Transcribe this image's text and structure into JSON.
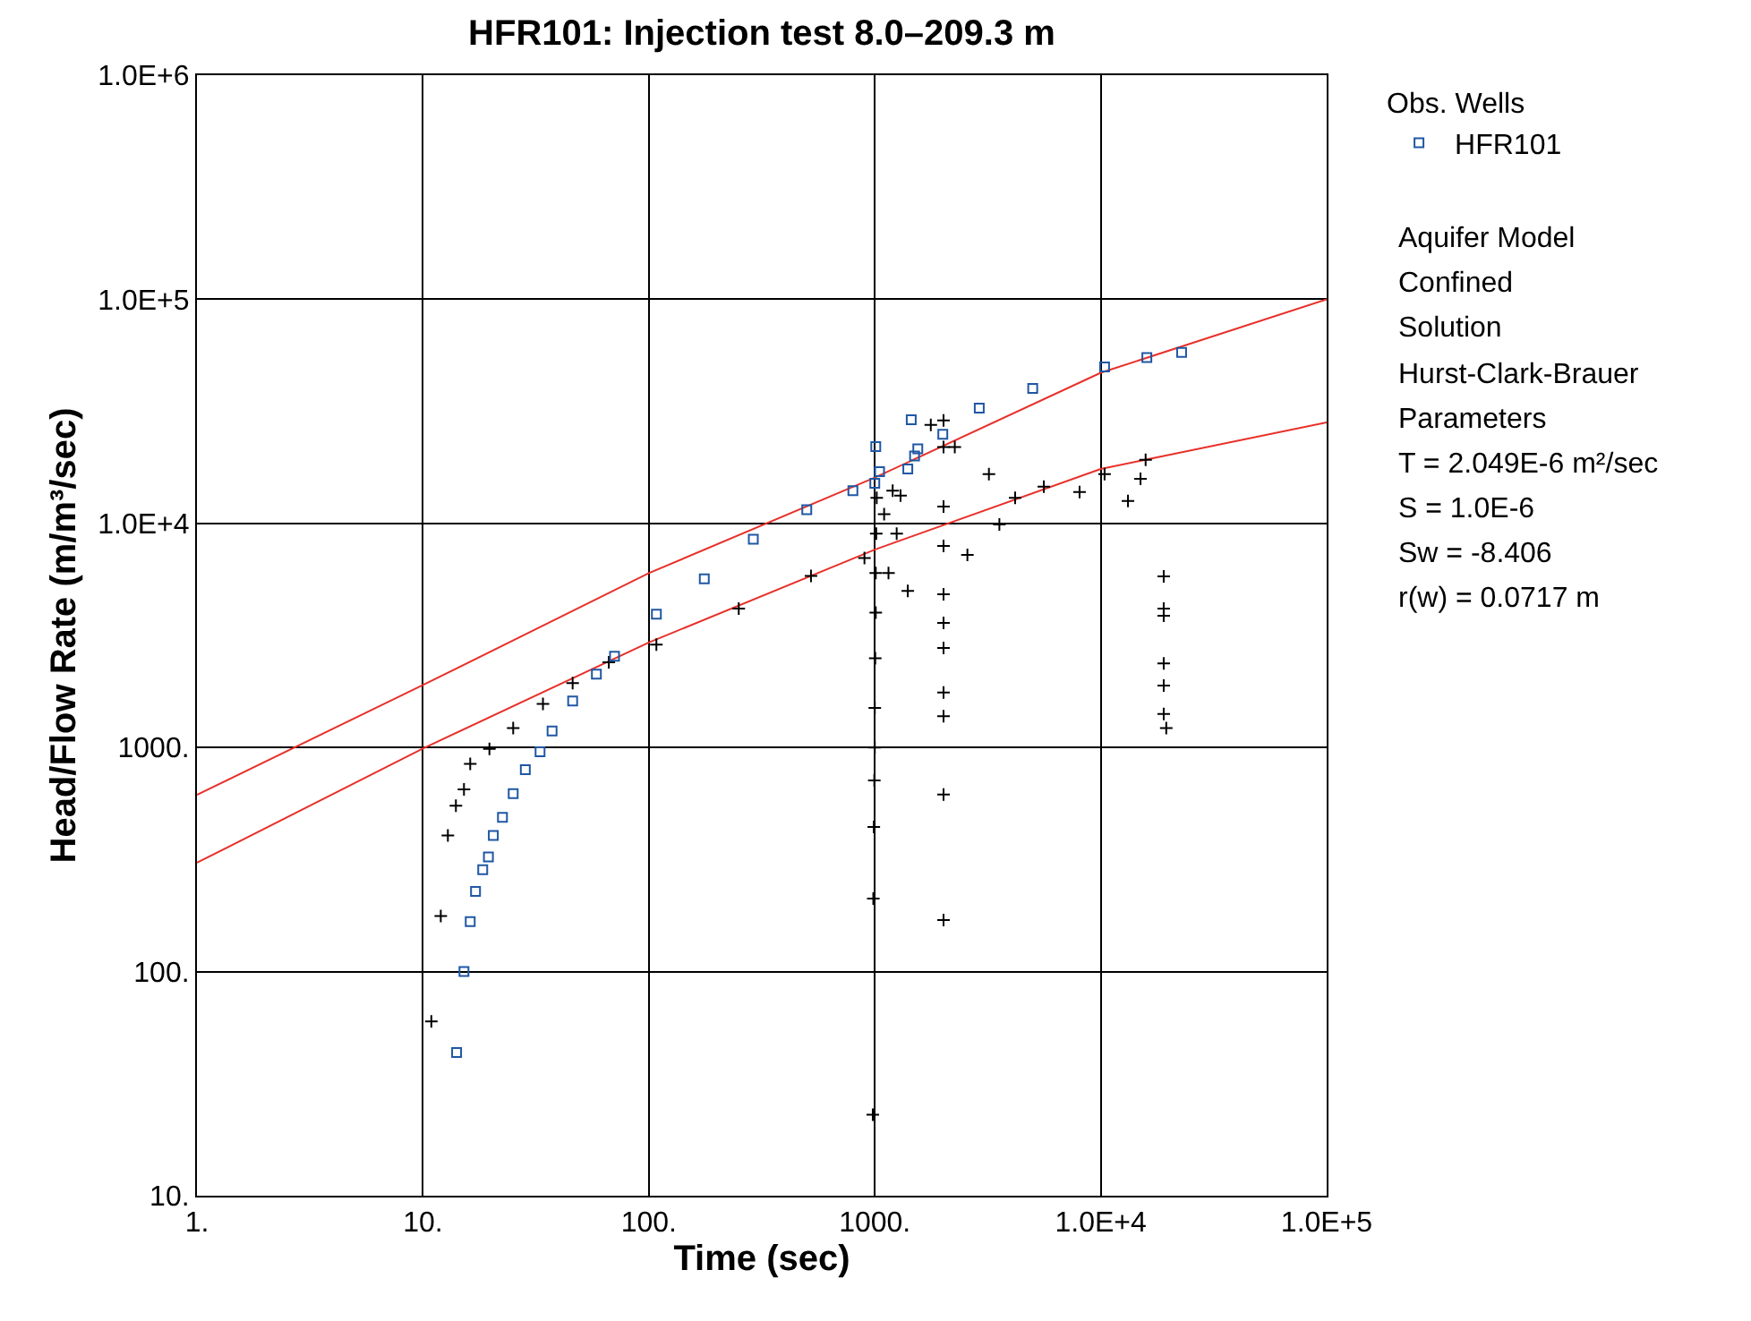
{
  "chart_data": {
    "type": "scatter",
    "title": "HFR101: Injection test 8.0–209.3 m",
    "xlabel": "Time (sec)",
    "ylabel": "Head/Flow Rate (m/m³/sec)",
    "legend_title": "Obs. Wells",
    "legend": "top right",
    "log": "xy",
    "grid": true,
    "xlim": [
      1,
      100000
    ],
    "xticks": [
      {
        "value": 1,
        "label": "1."
      },
      {
        "value": 10,
        "label": "10."
      },
      {
        "value": 100,
        "label": "100."
      },
      {
        "value": 1000,
        "label": "1000."
      },
      {
        "value": 10000,
        "label": "1.0E+4"
      },
      {
        "value": 100000,
        "label": "1.0E+5"
      }
    ],
    "ylim": [
      10,
      1000000
    ],
    "yticks": [
      {
        "value": 10,
        "label": "10."
      },
      {
        "value": 100,
        "label": "100."
      },
      {
        "value": 1000,
        "label": "1000."
      },
      {
        "value": 10000,
        "label": "1.0E+4"
      },
      {
        "value": 100000,
        "label": "1.0E+5"
      },
      {
        "value": 1000000,
        "label": "1.0E+6"
      }
    ],
    "series": [
      {
        "type": "line",
        "color": "#e8302a",
        "marker": "none",
        "x": [
          1,
          10,
          100,
          1000,
          10000,
          100000
        ],
        "values": [
          615,
          1900,
          6000,
          16000,
          47000,
          100000
        ]
      },
      {
        "type": "line",
        "color": "#e8302a",
        "marker": "none",
        "x": [
          1,
          10,
          100,
          1000,
          10000,
          100000
        ],
        "values": [
          306,
          990,
          2940,
          7640,
          17500,
          28200
        ]
      },
      {
        "color": "#000000",
        "marker": "cross",
        "x": [
          10.9,
          12.0,
          12.9,
          14.0,
          15.2,
          16.2,
          19.7,
          25.1,
          34,
          46,
          66.5,
          108,
          250,
          522,
          900,
          980,
          985,
          990,
          995,
          1000,
          1000,
          1005,
          1010,
          1010,
          1015,
          1020,
          1100,
          1150,
          1200,
          1250,
          1300,
          1400,
          1770,
          2015,
          2015,
          2015,
          2015,
          2015,
          2015,
          2015,
          2015,
          2015,
          2015,
          2015,
          2260,
          2570,
          3200,
          3560,
          4180,
          5600,
          8060,
          10400,
          13200,
          15000,
          15800,
          19000,
          19000,
          19000,
          19000,
          19000,
          19000,
          19500
        ],
        "values": [
          60,
          177,
          405,
          550,
          650,
          845,
          986,
          1220,
          1564,
          1937,
          2400,
          2880,
          4170,
          5830,
          7000,
          23,
          212,
          442,
          713,
          1000,
          1500,
          2500,
          4000,
          6000,
          9000,
          13000,
          11000,
          6000,
          14000,
          9000,
          13300,
          5000,
          27500,
          170,
          617,
          1380,
          1760,
          2780,
          3600,
          4830,
          7940,
          11900,
          21900,
          28800,
          21900,
          7240,
          16600,
          9900,
          13000,
          14600,
          13800,
          16600,
          12600,
          15800,
          19200,
          5800,
          4170,
          3870,
          2370,
          1890,
          1410,
          1220
        ]
      },
      {
        "name": "HFR101",
        "color": "#1f57a4",
        "marker": "square",
        "x": [
          14.1,
          15.2,
          16.2,
          17.1,
          18.4,
          19.5,
          20.5,
          22.5,
          25.1,
          28.4,
          33,
          37.3,
          46,
          58.6,
          70.5,
          108,
          176,
          290,
          500,
          800,
          1000,
          1010,
          1050,
          1400,
          1450,
          1500,
          1550,
          2000,
          2900,
          5000,
          10400,
          16000,
          22800
        ],
        "values": [
          43.5,
          100,
          167,
          228,
          285,
          325,
          405,
          488,
          623,
          796,
          957,
          1186,
          1611,
          2125,
          2552,
          3930,
          5660,
          8500,
          11500,
          14000,
          15100,
          22000,
          17000,
          17500,
          29000,
          20000,
          21500,
          25000,
          32700,
          40000,
          49900,
          55000,
          58000
        ]
      }
    ],
    "annotations": [
      "Aquifer Model",
      "Confined",
      "Solution",
      "Hurst-Clark-Brauer",
      "Parameters",
      "T = 2.049E-6 m²/sec",
      "S = 1.0E-6",
      "Sw = -8.406",
      "r(w) = 0.0717 m"
    ]
  }
}
